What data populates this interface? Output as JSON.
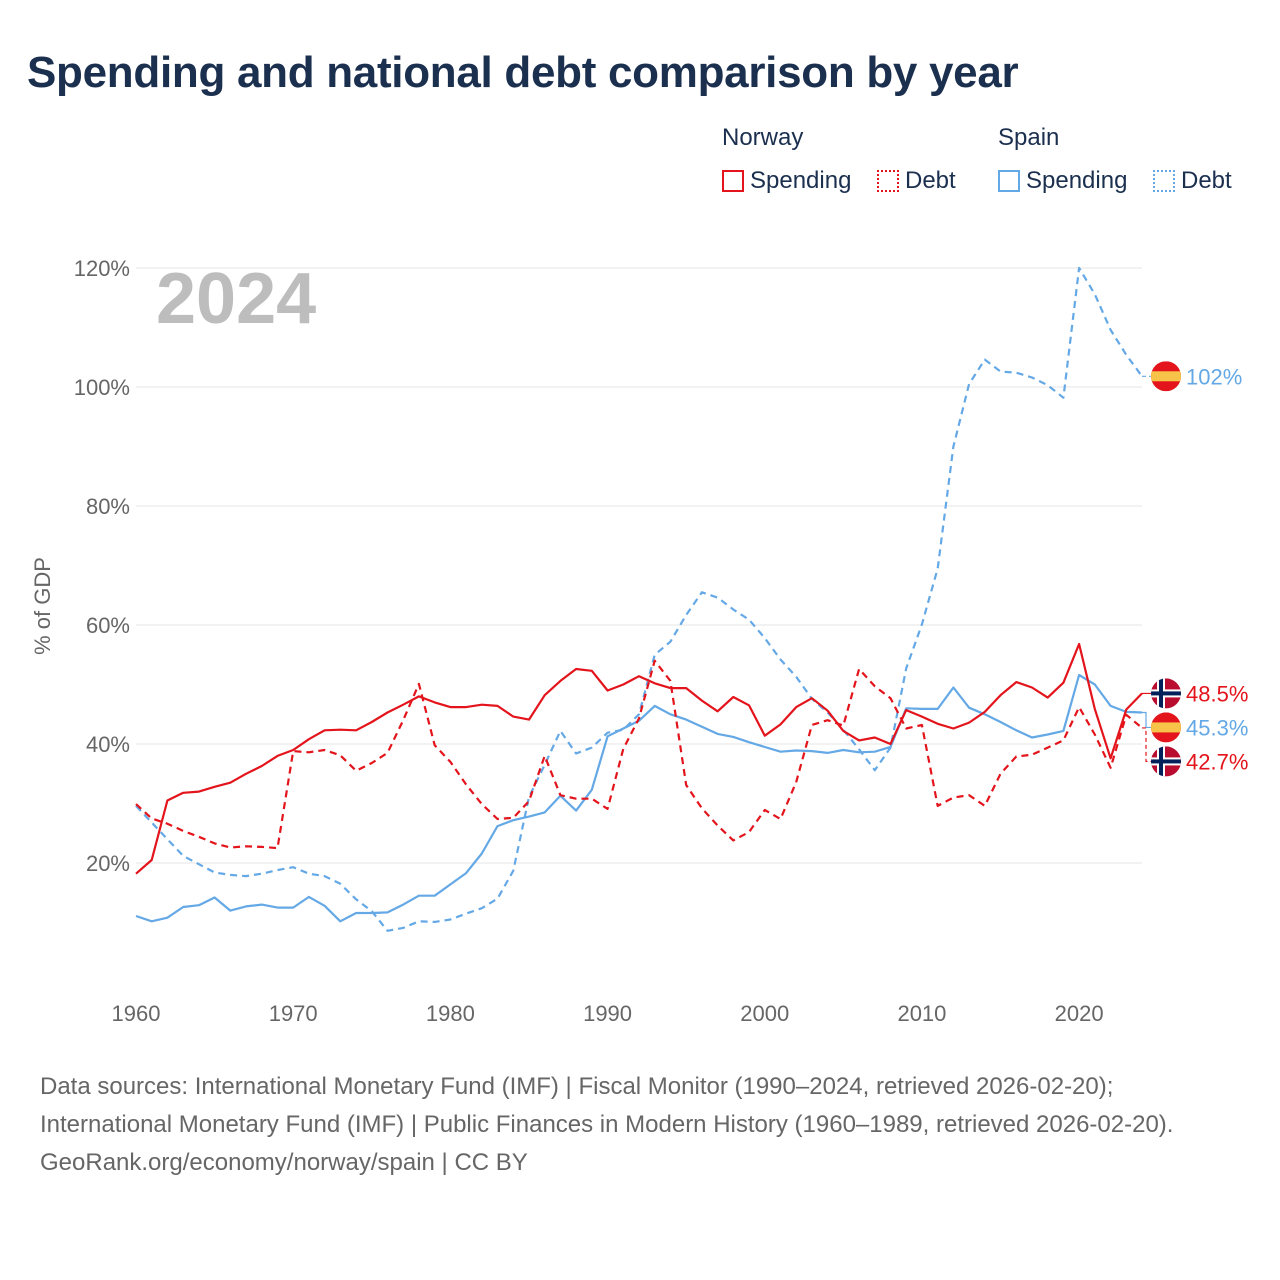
{
  "title": "Spending and national debt comparison by year",
  "legend": {
    "groups": [
      {
        "country": "Norway",
        "color": "#e3141b",
        "items": [
          {
            "label": "Spending",
            "style": "solid"
          },
          {
            "label": "Debt",
            "style": "dotted"
          }
        ]
      },
      {
        "country": "Spain",
        "color": "#64a8e6",
        "items": [
          {
            "label": "Spending",
            "style": "solid"
          },
          {
            "label": "Debt",
            "style": "dotted"
          }
        ]
      }
    ]
  },
  "year_overlay": "2024",
  "footer": {
    "sources": "Data sources: International Monetary Fund (IMF) | Fiscal Monitor (1990–2024, retrieved 2026-02-20); International Monetary Fund (IMF) | Public Finances in Modern History (1960–1989, retrieved 2026-02-20).",
    "attribution": "GeoRank.org/economy/norway/spain | CC BY"
  },
  "chart_data": {
    "type": "line",
    "title": "Spending and national debt comparison by year",
    "xlabel": "",
    "ylabel": "% of GDP",
    "xlim": [
      1960,
      2024
    ],
    "ylim": [
      0,
      120
    ],
    "x_ticks": [
      1960,
      1970,
      1980,
      1990,
      2000,
      2010,
      2020
    ],
    "y_ticks": [
      20,
      40,
      60,
      80,
      100,
      120
    ],
    "y_tick_labels": [
      "20%",
      "40%",
      "60%",
      "80%",
      "100%",
      "120%"
    ],
    "grid": true,
    "x": [
      1960,
      1961,
      1962,
      1963,
      1964,
      1965,
      1966,
      1967,
      1968,
      1969,
      1970,
      1971,
      1972,
      1973,
      1974,
      1975,
      1976,
      1977,
      1978,
      1979,
      1980,
      1981,
      1982,
      1983,
      1984,
      1985,
      1986,
      1987,
      1988,
      1989,
      1990,
      1991,
      1992,
      1993,
      1994,
      1995,
      1996,
      1997,
      1998,
      1999,
      2000,
      2001,
      2002,
      2003,
      2004,
      2005,
      2006,
      2007,
      2008,
      2009,
      2010,
      2011,
      2012,
      2013,
      2014,
      2015,
      2016,
      2017,
      2018,
      2019,
      2020,
      2021,
      2022,
      2023,
      2024
    ],
    "series": [
      {
        "name": "Norway Spending",
        "country": "Norway",
        "metric": "Spending",
        "color": "#e3141b",
        "dash": "solid",
        "values": [
          18.2,
          20.5,
          30.5,
          31.8,
          32.0,
          32.8,
          33.5,
          35.0,
          36.3,
          38.0,
          39.0,
          40.8,
          42.3,
          42.4,
          42.3,
          43.7,
          45.3,
          46.6,
          48.0,
          47.0,
          46.2,
          46.2,
          46.6,
          46.4,
          44.6,
          44.1,
          48.2,
          50.6,
          52.6,
          52.3,
          49.0,
          50.0,
          51.4,
          50.2,
          49.4,
          49.4,
          47.3,
          45.5,
          47.9,
          46.5,
          41.4,
          43.3,
          46.2,
          47.7,
          45.6,
          42.2,
          40.6,
          41.1,
          40.0,
          45.7,
          44.6,
          43.4,
          42.6,
          43.6,
          45.4,
          48.2,
          50.4,
          49.5,
          47.8,
          50.3,
          56.8,
          45.9,
          37.6,
          45.8,
          48.5
        ],
        "end_label": "48.5%"
      },
      {
        "name": "Norway Debt",
        "country": "Norway",
        "metric": "Debt",
        "color": "#e3141b",
        "dash": "dotted",
        "values": [
          29.9,
          27.5,
          26.6,
          25.4,
          24.4,
          23.3,
          22.6,
          22.8,
          22.7,
          22.5,
          38.8,
          38.6,
          39.0,
          38.1,
          35.5,
          36.8,
          38.5,
          44.0,
          50.1,
          39.8,
          37.0,
          33.2,
          29.9,
          27.4,
          27.6,
          30.4,
          38.0,
          31.4,
          30.8,
          30.8,
          29.1,
          39.2,
          44.3,
          54.0,
          50.6,
          33.1,
          29.2,
          26.3,
          23.8,
          25.2,
          28.9,
          27.4,
          33.6,
          43.2,
          44.0,
          43.1,
          52.6,
          49.7,
          47.7,
          42.6,
          43.2,
          29.6,
          31.0,
          31.4,
          29.6,
          35.0,
          37.9,
          38.2,
          39.4,
          40.6,
          46.2,
          41.6,
          36.0,
          44.9,
          42.7
        ],
        "end_label": "42.7%"
      },
      {
        "name": "Spain Spending",
        "country": "Spain",
        "metric": "Spending",
        "color": "#64a8e6",
        "dash": "solid",
        "values": [
          11.1,
          10.2,
          10.8,
          12.6,
          12.9,
          14.2,
          12.0,
          12.7,
          13.0,
          12.5,
          12.5,
          14.3,
          12.8,
          10.2,
          11.6,
          11.6,
          11.7,
          13.0,
          14.5,
          14.5,
          16.4,
          18.3,
          21.6,
          26.2,
          27.2,
          27.8,
          28.5,
          31.3,
          28.8,
          32.3,
          41.3,
          42.6,
          43.9,
          46.4,
          45.0,
          44.1,
          42.9,
          41.7,
          41.2,
          40.3,
          39.5,
          38.7,
          38.9,
          38.8,
          38.5,
          39.0,
          38.6,
          38.7,
          39.5,
          46.0,
          45.9,
          45.9,
          49.5,
          46.1,
          45.0,
          43.7,
          42.3,
          41.1,
          41.6,
          42.2,
          51.6,
          50.0,
          46.4,
          45.4,
          45.3
        ],
        "end_label": "45.3%"
      },
      {
        "name": "Spain Debt",
        "country": "Spain",
        "metric": "Debt",
        "color": "#64a8e6",
        "dash": "dotted",
        "values": [
          29.6,
          26.8,
          24.0,
          21.2,
          19.8,
          18.4,
          18.0,
          17.8,
          18.2,
          18.8,
          19.3,
          18.2,
          17.8,
          16.5,
          13.9,
          11.9,
          8.6,
          9.1,
          10.2,
          10.1,
          10.5,
          11.5,
          12.4,
          14.0,
          18.7,
          31.1,
          36.5,
          42.2,
          38.4,
          39.4,
          41.9,
          42.4,
          45.0,
          55.0,
          57.2,
          61.7,
          65.5,
          64.6,
          62.6,
          60.9,
          57.8,
          54.2,
          51.3,
          47.6,
          45.3,
          42.4,
          39.1,
          35.6,
          39.4,
          52.7,
          60.1,
          69.5,
          90.0,
          100.5,
          104.6,
          102.6,
          102.4,
          101.6,
          100.3,
          98.2,
          120.0,
          115.6,
          109.6,
          105.4,
          101.8
        ],
        "end_label": "102%"
      }
    ]
  }
}
